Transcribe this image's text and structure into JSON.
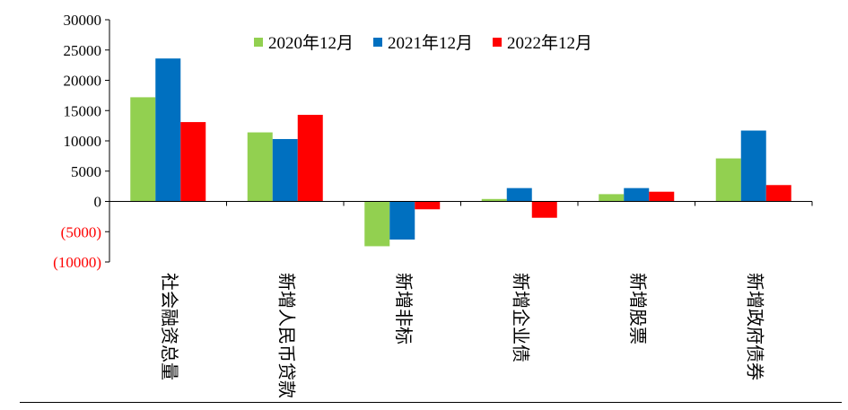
{
  "chart_data": {
    "type": "bar",
    "categories": [
      "社会融资总量",
      "新增人民币贷款",
      "新增非标",
      "新增企业债",
      "新增股票",
      "新增政府债券"
    ],
    "series": [
      {
        "name": "2020年12月",
        "color": "#92D050",
        "values": [
          17200,
          11400,
          -7400,
          400,
          1200,
          7100
        ]
      },
      {
        "name": "2021年12月",
        "color": "#0070C0",
        "values": [
          23600,
          10300,
          -6300,
          2200,
          2200,
          11700
        ]
      },
      {
        "name": "2022年12月",
        "color": "#FF0000",
        "values": [
          13100,
          14300,
          -1300,
          -2700,
          1600,
          2700
        ]
      }
    ],
    "y_ticks": [
      {
        "value": 30000,
        "label": "30000",
        "color": "#000000"
      },
      {
        "value": 25000,
        "label": "25000",
        "color": "#000000"
      },
      {
        "value": 20000,
        "label": "20000",
        "color": "#000000"
      },
      {
        "value": 15000,
        "label": "15000",
        "color": "#000000"
      },
      {
        "value": 10000,
        "label": "10000",
        "color": "#000000"
      },
      {
        "value": 5000,
        "label": "5000",
        "color": "#000000"
      },
      {
        "value": 0,
        "label": "0",
        "color": "#000000"
      },
      {
        "value": -5000,
        "label": "(5000)",
        "color": "#FF0000"
      },
      {
        "value": -10000,
        "label": "(10000)",
        "color": "#FF0000"
      }
    ],
    "ylim": [
      -10000,
      30000
    ],
    "title": "",
    "xlabel": "",
    "ylabel": "",
    "grid": false,
    "legend_position": "top"
  }
}
